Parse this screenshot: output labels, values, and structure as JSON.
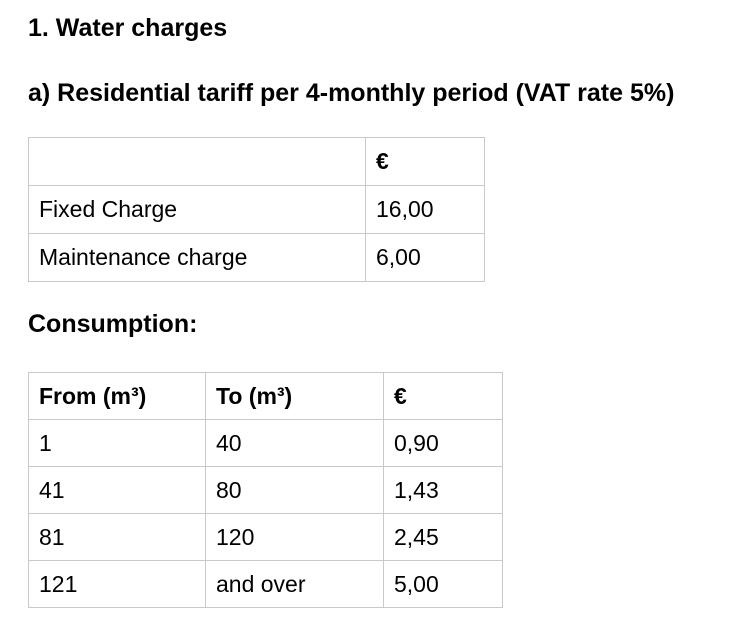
{
  "page": {
    "title": "1. Water charges",
    "subtitle": "a) Residential tariff per 4-monthly period (VAT rate 5%)",
    "consumption_label": "Consumption:"
  },
  "fixed_charges_table": {
    "columns": [
      "",
      "€"
    ],
    "rows": [
      {
        "label": "Fixed Charge",
        "amount": "16,00"
      },
      {
        "label": "Maintenance charge",
        "amount": "6,00"
      }
    ]
  },
  "consumption_table": {
    "columns": [
      "From (m³)",
      "To (m³)",
      "€"
    ],
    "rows": [
      {
        "from": "1",
        "to": "40",
        "rate": "0,90"
      },
      {
        "from": "41",
        "to": "80",
        "rate": "1,43"
      },
      {
        "from": "81",
        "to": "120",
        "rate": "2,45"
      },
      {
        "from": "121",
        "to": "and over",
        "rate": "5,00"
      }
    ]
  },
  "colors": {
    "background": "#ffffff",
    "text": "#000000",
    "table_border": "#c9c9c9"
  }
}
